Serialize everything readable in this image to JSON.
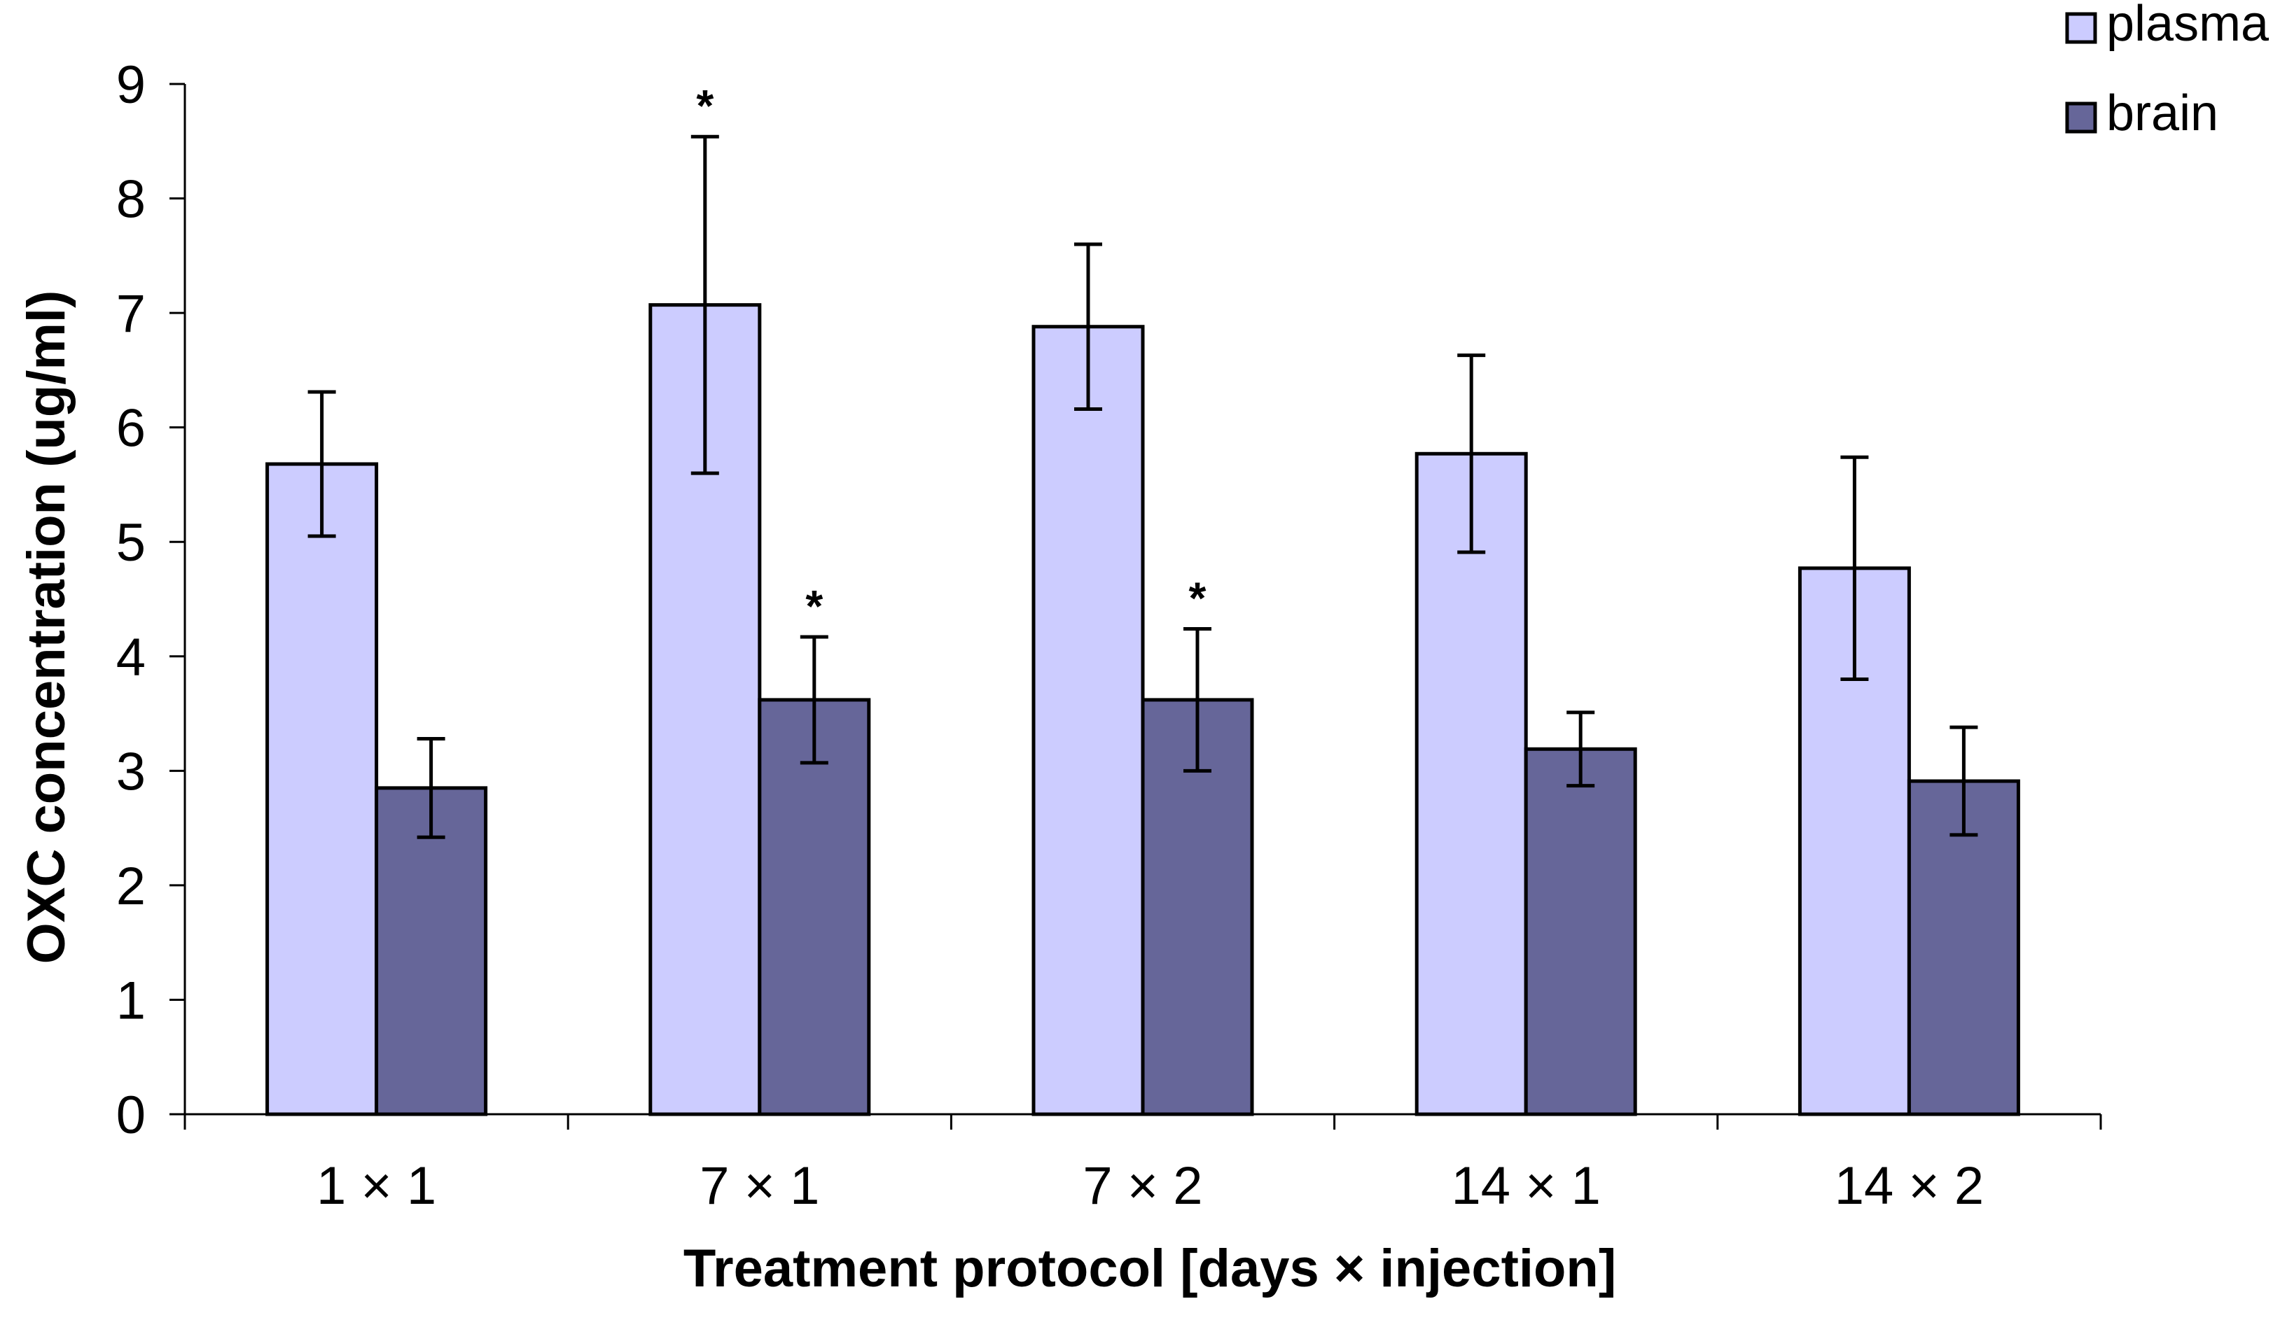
{
  "chart_data": {
    "type": "bar",
    "title": "",
    "xlabel": "Treatment protocol [days × injection]",
    "ylabel": "OXC concentration  (ug/ml)",
    "ylim": [
      0,
      9
    ],
    "yticks": [
      "0",
      "1",
      "2",
      "3",
      "4",
      "5",
      "6",
      "7",
      "8",
      "9"
    ],
    "categories": [
      "1 × 1",
      "7 × 1",
      "7 × 2",
      "14 × 1",
      "14 × 2"
    ],
    "legend_position": "top-right",
    "grid": false,
    "series": [
      {
        "name": "plasma",
        "color": "#ccccff",
        "values": [
          5.68,
          7.07,
          6.88,
          5.77,
          4.77
        ],
        "errors": [
          0.63,
          1.47,
          0.72,
          0.86,
          0.97
        ],
        "annotations": [
          "",
          "*",
          "",
          "",
          ""
        ]
      },
      {
        "name": "brain",
        "color": "#666699",
        "values": [
          2.85,
          3.62,
          3.62,
          3.19,
          2.91
        ],
        "errors": [
          0.43,
          0.55,
          0.62,
          0.32,
          0.47
        ],
        "annotations": [
          "",
          "*",
          "*",
          "",
          ""
        ]
      }
    ]
  }
}
